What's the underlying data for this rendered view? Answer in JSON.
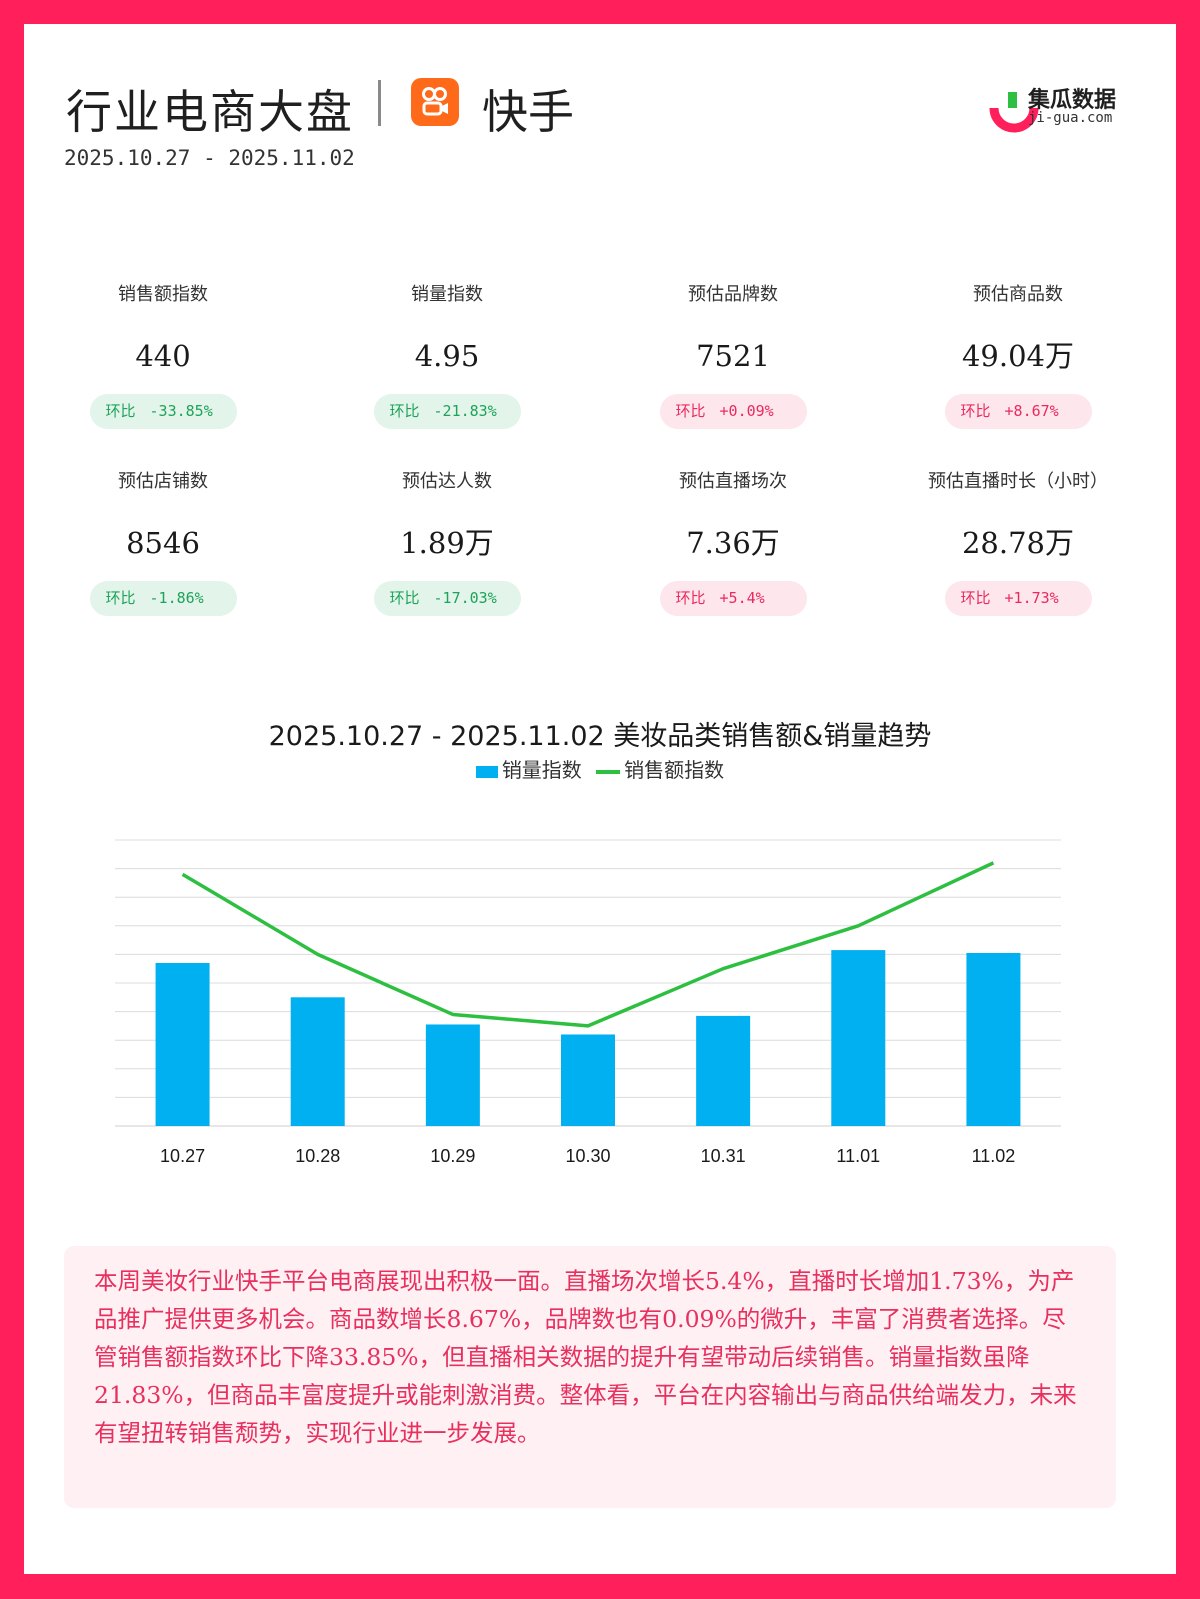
{
  "header": {
    "title": "行业电商大盘",
    "platform": "快手",
    "date_range": "2025.10.27 - 2025.11.02",
    "brand_name": "集瓜数据",
    "brand_url": "ji-gua.com"
  },
  "metrics": [
    {
      "label": "销售额指数",
      "value": "440",
      "change_prefix": "环比",
      "change": "-33.85%",
      "trend": "down"
    },
    {
      "label": "销量指数",
      "value": "4.95",
      "change_prefix": "环比",
      "change": "-21.83%",
      "trend": "down"
    },
    {
      "label": "预估品牌数",
      "value": "7521",
      "change_prefix": "环比",
      "change": "+0.09%",
      "trend": "up"
    },
    {
      "label": "预估商品数",
      "value": "49.04万",
      "change_prefix": "环比",
      "change": "+8.67%",
      "trend": "up"
    },
    {
      "label": "预估店铺数",
      "value": "8546",
      "change_prefix": "环比",
      "change": "-1.86%",
      "trend": "down"
    },
    {
      "label": "预估达人数",
      "value": "1.89万",
      "change_prefix": "环比",
      "change": "-17.03%",
      "trend": "down"
    },
    {
      "label": "预估直播场次",
      "value": "7.36万",
      "change_prefix": "环比",
      "change": "+5.4%",
      "trend": "up"
    },
    {
      "label": "预估直播时长（小时）",
      "value": "28.78万",
      "change_prefix": "环比",
      "change": "+1.73%",
      "trend": "up"
    }
  ],
  "colors": {
    "frame": "#ff1f5a",
    "bar": "#00b0f0",
    "line": "#2dbf3f",
    "down_text": "#1ea35a",
    "down_bg": "#e3f4ea",
    "up_text": "#ea2a5f",
    "up_bg": "#fde6ec"
  },
  "chart_data": {
    "type": "bar",
    "title": "2025.10.27 - 2025.11.02 美妆品类销售额&销量趋势",
    "categories": [
      "10.27",
      "10.28",
      "10.29",
      "10.30",
      "10.31",
      "11.01",
      "11.02"
    ],
    "series": [
      {
        "name": "销量指数",
        "type": "bar",
        "values": [
          5.7,
          4.5,
          3.55,
          3.2,
          3.85,
          6.15,
          6.05
        ]
      },
      {
        "name": "销售额指数",
        "type": "line",
        "values": [
          8.8,
          6.0,
          3.9,
          3.5,
          5.5,
          7.0,
          9.2
        ]
      }
    ],
    "ylim": [
      0,
      10
    ],
    "y_ticks_labeled": false,
    "grid": true,
    "legend": "top-center"
  },
  "summary": "本周美妆行业快手平台电商展现出积极一面。直播场次增长5.4%，直播时长增加1.73%，为产品推广提供更多机会。商品数增长8.67%，品牌数也有0.09%的微升，丰富了消费者选择。尽管销售额指数环比下降33.85%，但直播相关数据的提升有望带动后续销售。销量指数虽降21.83%，但商品丰富度提升或能刺激消费。整体看，平台在内容输出与商品供给端发力，未来有望扭转销售颓势，实现行业进一步发展。"
}
